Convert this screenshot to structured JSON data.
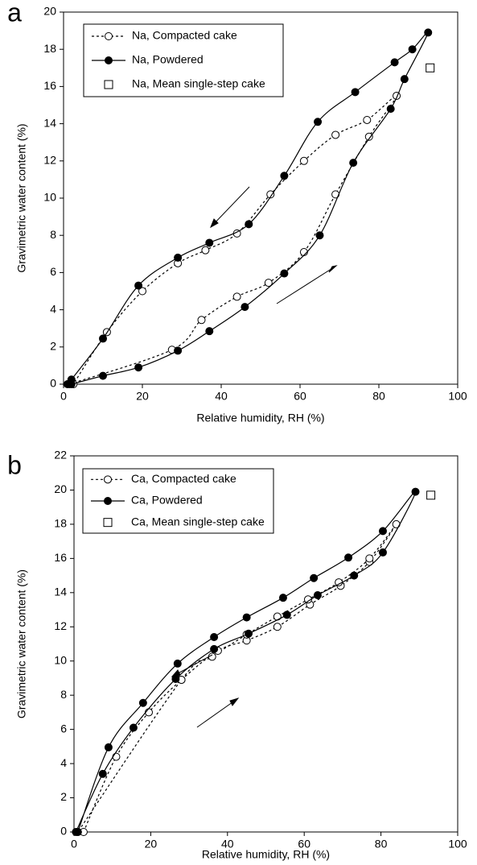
{
  "chart_data": [
    {
      "type": "line",
      "panel_label": "a",
      "xlabel": "Relative humidity, RH (%)",
      "ylabel": "Gravimetric water content (%)",
      "xlim": [
        0,
        100
      ],
      "ylim": [
        0,
        20
      ],
      "xticks": [
        0,
        20,
        40,
        60,
        80,
        100
      ],
      "yticks": [
        0,
        2,
        4,
        6,
        8,
        10,
        12,
        14,
        16,
        18,
        20
      ],
      "series": [
        {
          "name": "Na, Compacted cake",
          "color": "#000000",
          "line_style": "dotted",
          "marker": "open-circle",
          "x": [
            1.5,
            27.5,
            35,
            44,
            52,
            61,
            69,
            77.5,
            84.5,
            77,
            69,
            61,
            52.5,
            44,
            36,
            29,
            20,
            11,
            2.5
          ],
          "values": [
            0,
            1.85,
            3.45,
            4.7,
            5.45,
            7.1,
            10.2,
            13.3,
            15.5,
            14.2,
            13.4,
            12.0,
            10.2,
            8.1,
            7.2,
            6.5,
            5.0,
            2.8,
            0
          ]
        },
        {
          "name": "Na, Powdered",
          "color": "#000000",
          "line_style": "solid",
          "marker": "filled-circle",
          "x": [
            2,
            10,
            19,
            29,
            37,
            46,
            56,
            65,
            73.5,
            83,
            86.5,
            92.5,
            88.5,
            84,
            74,
            64.5,
            56,
            47,
            37,
            29,
            19,
            10,
            2,
            1
          ],
          "values": [
            0,
            0.45,
            0.9,
            1.8,
            2.85,
            4.15,
            5.95,
            8.0,
            11.9,
            14.8,
            16.4,
            18.9,
            18.0,
            17.3,
            15.7,
            14.1,
            11.2,
            8.6,
            7.6,
            6.8,
            5.3,
            2.45,
            0.25,
            0
          ]
        },
        {
          "name": "Na, Mean single-step cake",
          "color": "#000000",
          "line_style": "none",
          "marker": "open-square",
          "x": [
            93
          ],
          "values": [
            17.0
          ]
        }
      ]
    },
    {
      "type": "line",
      "panel_label": "b",
      "xlabel": "Relative humidity, RH (%)",
      "ylabel": "Gravimetric water content (%)",
      "xlim": [
        0,
        100
      ],
      "ylim": [
        0,
        22
      ],
      "xticks": [
        0,
        20,
        40,
        60,
        80,
        100
      ],
      "yticks": [
        0,
        2,
        4,
        6,
        8,
        10,
        12,
        14,
        16,
        18,
        20,
        22
      ],
      "series": [
        {
          "name": "Ca, Compacted cake",
          "color": "#000000",
          "line_style": "dotted",
          "marker": "open-circle",
          "x": [
            2.5,
            11,
            19.5,
            28,
            37.5,
            45,
            53,
            61.5,
            69.5,
            77,
            84,
            77,
            69,
            61,
            53,
            45,
            36,
            28,
            1
          ],
          "values": [
            0,
            4.4,
            7.0,
            8.9,
            10.6,
            11.2,
            12.0,
            13.3,
            14.4,
            15.8,
            18.0,
            16.0,
            14.6,
            13.6,
            12.6,
            11.55,
            10.25,
            8.9,
            0
          ]
        },
        {
          "name": "Ca, Powdered",
          "color": "#000000",
          "line_style": "solid",
          "marker": "filled-circle",
          "x": [
            0.5,
            7.5,
            15.5,
            26.5,
            36.5,
            45.5,
            55.5,
            63.5,
            73,
            80.5,
            89,
            80.5,
            71.5,
            62.5,
            54.5,
            45,
            36.5,
            27,
            18,
            9,
            1
          ],
          "values": [
            0,
            3.4,
            6.1,
            8.95,
            10.7,
            11.6,
            12.7,
            13.85,
            15.0,
            16.35,
            19.9,
            17.6,
            16.05,
            14.85,
            13.7,
            12.55,
            11.4,
            9.85,
            7.55,
            4.95,
            0
          ]
        },
        {
          "name": "Ca, Mean single-step cake",
          "color": "#000000",
          "line_style": "none",
          "marker": "open-square",
          "x": [
            93
          ],
          "values": [
            19.7
          ]
        }
      ]
    }
  ]
}
